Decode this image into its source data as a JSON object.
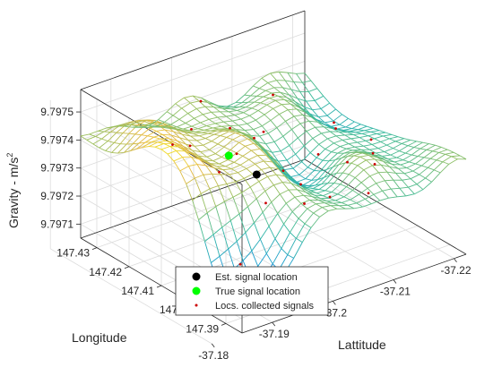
{
  "chart_data": {
    "type": "surface",
    "title": "",
    "xlabel": "Lattitude",
    "ylabel": "Longitude",
    "zlabel": "Gravity - m/s",
    "zlabel_sup": "2",
    "xlim": [
      -37.185,
      -37.222
    ],
    "ylim": [
      147.385,
      147.435
    ],
    "zlim": [
      9.79705,
      9.79758
    ],
    "x_ticks": [
      "-37.18",
      "-37.19",
      "-37.2",
      "-37.21",
      "-37.22"
    ],
    "x_tick_values": [
      -37.18,
      -37.19,
      -37.2,
      -37.21,
      -37.22
    ],
    "y_ticks": [
      "147.39",
      "147.4",
      "147.41",
      "147.42",
      "147.43"
    ],
    "y_tick_values": [
      147.39,
      147.4,
      147.41,
      147.42,
      147.43
    ],
    "z_ticks": [
      "9.7971",
      "9.7972",
      "9.7973",
      "9.7974",
      "9.7975"
    ],
    "z_tick_values": [
      9.7971,
      9.7972,
      9.7973,
      9.7974,
      9.7975
    ],
    "grid": true,
    "colormap": "parula",
    "legend_position": "bottom-center",
    "series": [
      {
        "name": "Est. signal location",
        "color": "#000000",
        "marker": "circle",
        "points": [
          [
            -37.205,
            147.418,
            9.79724
          ]
        ]
      },
      {
        "name": "True signal location",
        "color": "#00ff00",
        "marker": "circle",
        "points": [
          [
            -37.202,
            147.421,
            9.79731
          ]
        ]
      },
      {
        "name": "Locs. collected signals",
        "color": "#cc0000",
        "marker": "dot",
        "points": []
      }
    ]
  }
}
